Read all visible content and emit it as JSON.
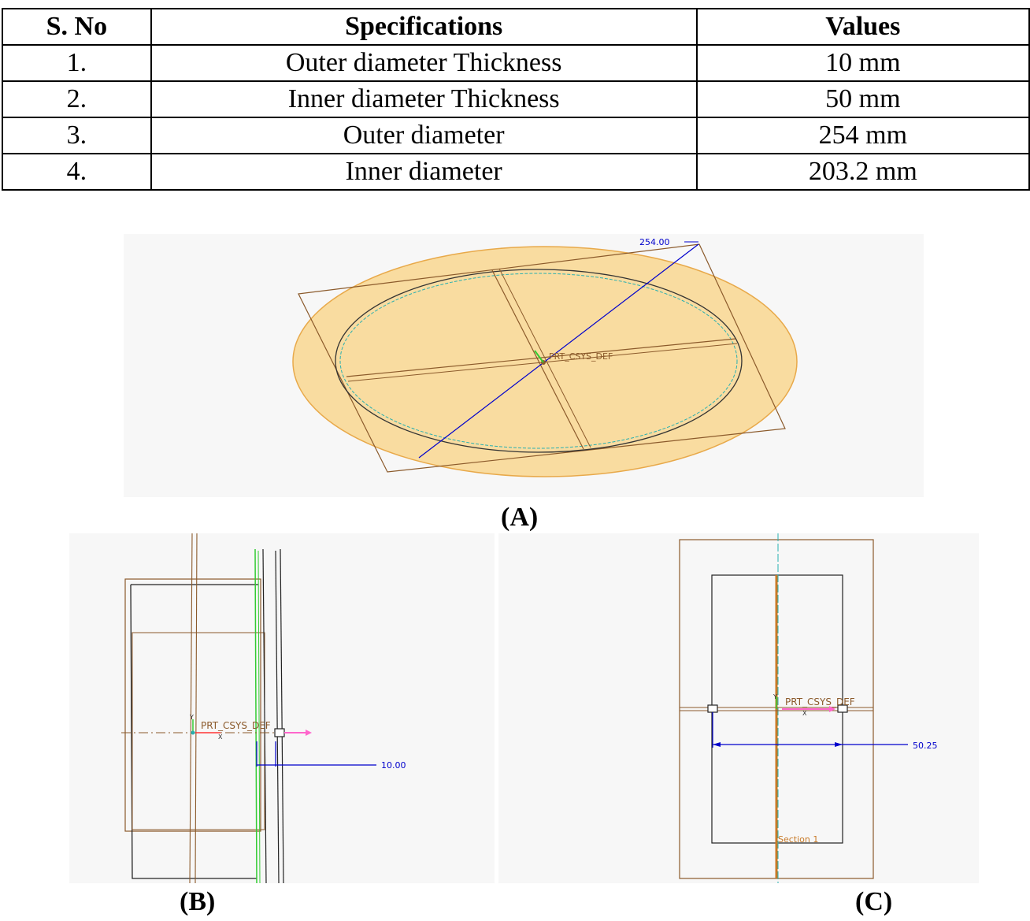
{
  "table": {
    "headers": [
      "S. No",
      "Specifications",
      "Values"
    ],
    "rows": [
      [
        "1.",
        "Outer diameter Thickness",
        "10 mm"
      ],
      [
        "2.",
        "Inner diameter Thickness",
        "50 mm"
      ],
      [
        "3.",
        "Outer diameter",
        "254 mm"
      ],
      [
        "4.",
        "Inner diameter",
        "203.2 mm"
      ]
    ]
  },
  "figure_a": {
    "caption": "(A)",
    "dimension": "254.00",
    "csys_label": "PRT_CSYS_DEF"
  },
  "figure_b": {
    "caption": "(B)",
    "dimension": "10.00",
    "csys_label": "PRT_CSYS_DEF",
    "axis_labels": [
      "Y",
      "X"
    ]
  },
  "figure_c": {
    "caption": "(C)",
    "dimension": "50.25",
    "csys_label": "PRT_CSYS_DEF",
    "section_label": "Section 1",
    "axis_labels": [
      "Y",
      "X"
    ]
  },
  "colors": {
    "disc_fill": "#f9dca0",
    "disc_edge": "#e8a94a",
    "datum": "#8b5a2b",
    "dimension": "#0000cc",
    "axis_cyan": "#2ab0b0",
    "axis_green": "#33cc33",
    "axis_pink": "#ff66cc"
  }
}
